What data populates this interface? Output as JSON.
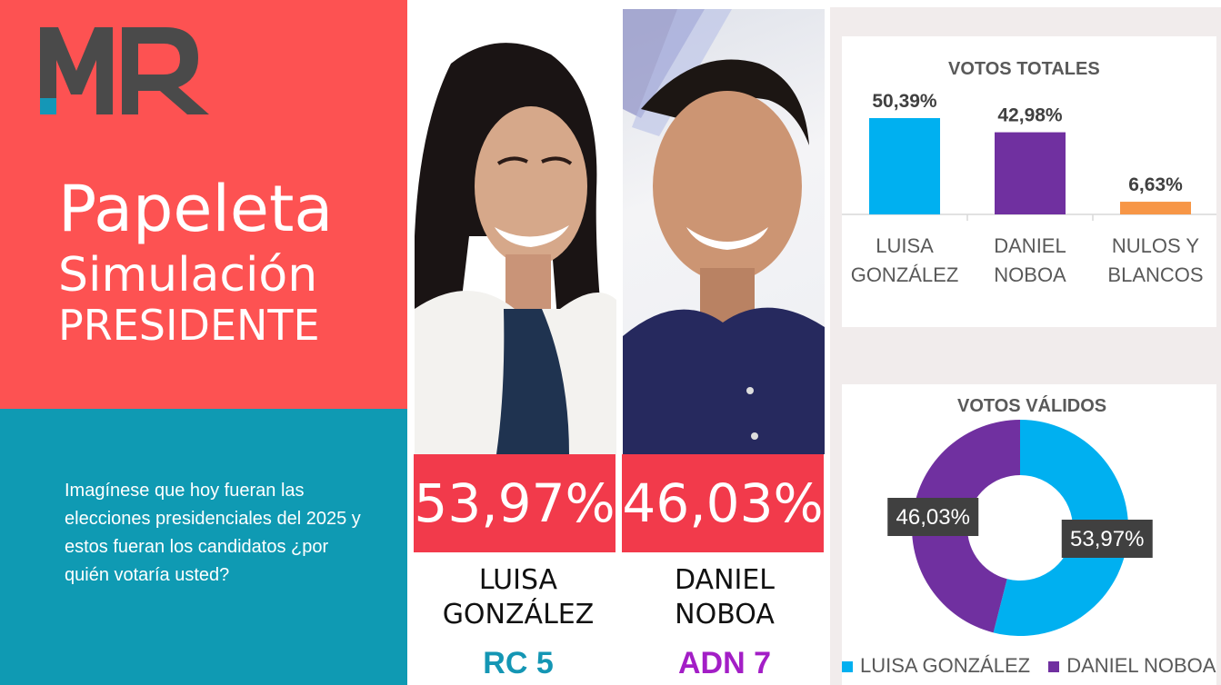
{
  "brand": {
    "logo_text": "MR",
    "colors": {
      "coral": "#fd5252",
      "teal": "#0f9ab3",
      "logo_gray": "#4a4a4a",
      "logo_teal": "#1497b7"
    }
  },
  "hero": {
    "title_1": "Papeleta",
    "title_2": "Simulación",
    "title_3": "PRESIDENTE",
    "question": "Imagínese que hoy fueran las elecciones presidenciales del 2025 y estos fueran los candidatos  ¿por quién votaría usted?"
  },
  "candidates": [
    {
      "percent": "53,97%",
      "name_line1": "LUISA",
      "name_line2": "GONZÁLEZ",
      "party": "RC 5",
      "party_color": "#1496b4"
    },
    {
      "percent": "46,03%",
      "name_line1": "DANIEL",
      "name_line2": "NOBOA",
      "party": "ADN 7",
      "party_color": "#a31ec6"
    }
  ],
  "chart_data": [
    {
      "type": "bar",
      "title": "VOTOS TOTALES",
      "categories": [
        [
          "LUISA",
          "GONZÁLEZ"
        ],
        [
          "DANIEL",
          "NOBOA"
        ],
        [
          "NULOS Y",
          "BLANCOS"
        ]
      ],
      "values": [
        50.39,
        42.98,
        6.63
      ],
      "labels": [
        "50,39%",
        "42,98%",
        "6,63%"
      ],
      "colors": [
        "#00b0f0",
        "#7030a0",
        "#f79646"
      ],
      "grid": false
    },
    {
      "type": "pie",
      "title": "VOTOS VÁLIDOS",
      "categories": [
        "LUISA GONZÁLEZ",
        "DANIEL NOBOA"
      ],
      "values": [
        53.97,
        46.03
      ],
      "labels": [
        "53,97%",
        "46,03%"
      ],
      "colors": [
        "#00b0f0",
        "#7030a0"
      ],
      "legend_position": "bottom"
    }
  ]
}
